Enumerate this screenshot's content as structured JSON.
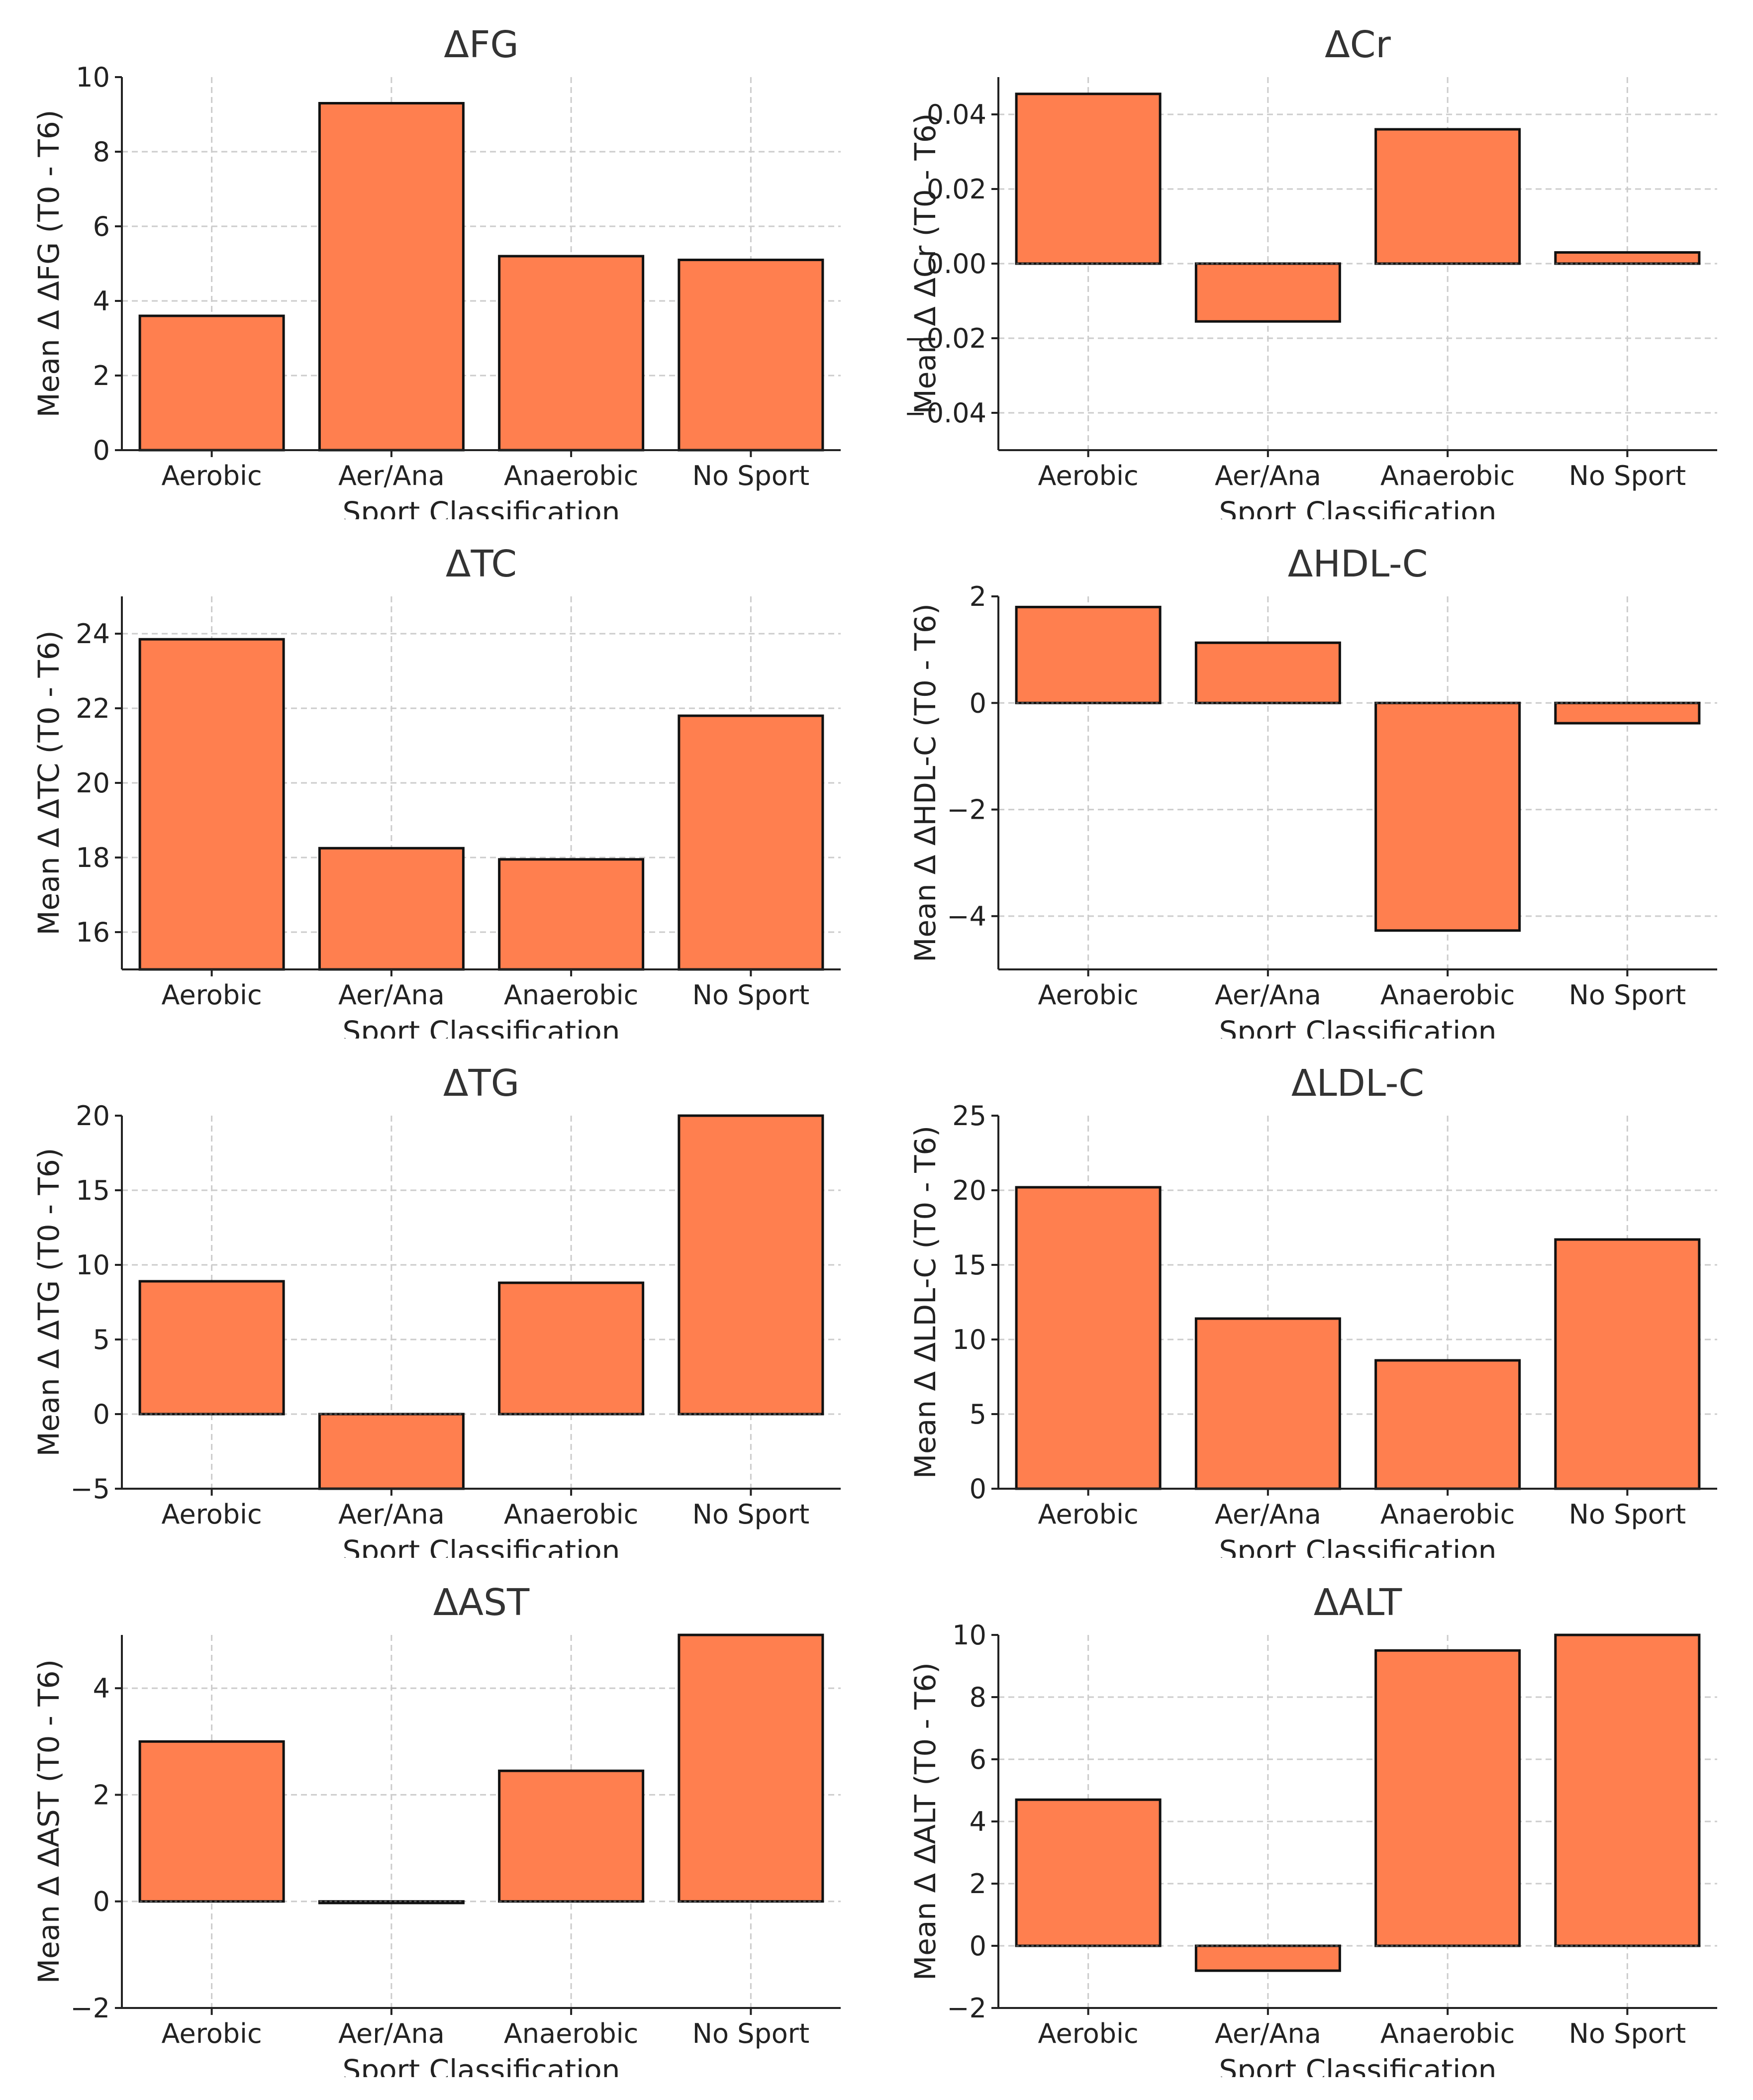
{
  "chart_data": [
    {
      "type": "bar",
      "title": "ΔFG",
      "xlabel": "Sport Classification",
      "ylabel": "Mean Δ ΔFG (T0 - T6)",
      "categories": [
        "Aerobic",
        "Aer/Ana",
        "Anaerobic",
        "No Sport"
      ],
      "values": [
        3.6,
        9.3,
        5.2,
        5.1
      ],
      "ylim": [
        0,
        10
      ],
      "yticks": [
        0,
        2,
        4,
        6,
        8,
        10
      ],
      "ytick_labels": [
        "0",
        "2",
        "4",
        "6",
        "8",
        "10"
      ],
      "grid": true,
      "bar_color": "#FF7F4F"
    },
    {
      "type": "bar",
      "title": "ΔCr",
      "xlabel": "Sport Classification",
      "ylabel": "Mean Δ ΔCr (T0 - T6)",
      "categories": [
        "Aerobic",
        "Aer/Ana",
        "Anaerobic",
        "No Sport"
      ],
      "values": [
        0.0455,
        -0.0155,
        0.036,
        0.003
      ],
      "ylim": [
        -0.05,
        0.05
      ],
      "yticks": [
        -0.04,
        -0.02,
        0.0,
        0.02,
        0.04
      ],
      "ytick_labels": [
        "−0.04",
        "−0.02",
        "0.00",
        "0.02",
        "0.04"
      ],
      "grid": true,
      "bar_color": "#FF7F4F"
    },
    {
      "type": "bar",
      "title": "ΔTC",
      "xlabel": "Sport Classification",
      "ylabel": "Mean Δ ΔTC (T0 - T6)",
      "categories": [
        "Aerobic",
        "Aer/Ana",
        "Anaerobic",
        "No Sport"
      ],
      "values": [
        23.85,
        18.25,
        17.95,
        21.8
      ],
      "ylim": [
        15,
        25
      ],
      "yticks": [
        16,
        18,
        20,
        22,
        24
      ],
      "ytick_labels": [
        "16",
        "18",
        "20",
        "22",
        "24"
      ],
      "grid": true,
      "bar_color": "#FF7F4F"
    },
    {
      "type": "bar",
      "title": "ΔHDL-C",
      "xlabel": "Sport Classification",
      "ylabel": "Mean Δ ΔHDL-C (T0 - T6)",
      "categories": [
        "Aerobic",
        "Aer/Ana",
        "Anaerobic",
        "No Sport"
      ],
      "values": [
        1.8,
        1.13,
        -4.27,
        -0.38
      ],
      "ylim": [
        -5,
        2
      ],
      "yticks": [
        -4,
        -2,
        0,
        2
      ],
      "ytick_labels": [
        "−4",
        "−2",
        "0",
        "2"
      ],
      "grid": true,
      "bar_color": "#FF7F4F"
    },
    {
      "type": "bar",
      "title": "ΔTG",
      "xlabel": "Sport Classification",
      "ylabel": "Mean Δ ΔTG (T0 - T6)",
      "categories": [
        "Aerobic",
        "Aer/Ana",
        "Anaerobic",
        "No Sport"
      ],
      "values": [
        8.9,
        -5.0,
        8.8,
        20.0
      ],
      "ylim": [
        -5,
        20
      ],
      "yticks": [
        -5,
        0,
        5,
        10,
        15,
        20
      ],
      "ytick_labels": [
        "−5",
        "0",
        "5",
        "10",
        "15",
        "20"
      ],
      "grid": true,
      "bar_color": "#FF7F4F"
    },
    {
      "type": "bar",
      "title": "ΔLDL-C",
      "xlabel": "Sport Classification",
      "ylabel": "Mean Δ ΔLDL-C (T0 - T6)",
      "categories": [
        "Aerobic",
        "Aer/Ana",
        "Anaerobic",
        "No Sport"
      ],
      "values": [
        20.2,
        11.4,
        8.6,
        16.7
      ],
      "ylim": [
        0,
        25
      ],
      "yticks": [
        0,
        5,
        10,
        15,
        20,
        25
      ],
      "ytick_labels": [
        "0",
        "5",
        "10",
        "15",
        "20",
        "25"
      ],
      "grid": true,
      "bar_color": "#FF7F4F"
    },
    {
      "type": "bar",
      "title": "ΔAST",
      "xlabel": "Sport Classification",
      "ylabel": "Mean Δ ΔAST (T0 - T6)",
      "categories": [
        "Aerobic",
        "Aer/Ana",
        "Anaerobic",
        "No Sport"
      ],
      "values": [
        3.0,
        -0.03,
        2.45,
        5.0
      ],
      "ylim": [
        -2,
        5
      ],
      "yticks": [
        -2,
        0,
        2,
        4
      ],
      "ytick_labels": [
        "−2",
        "0",
        "2",
        "4"
      ],
      "grid": true,
      "bar_color": "#FF7F4F"
    },
    {
      "type": "bar",
      "title": "ΔALT",
      "xlabel": "Sport Classification",
      "ylabel": "Mean Δ ΔALT (T0 - T6)",
      "categories": [
        "Aerobic",
        "Aer/Ana",
        "Anaerobic",
        "No Sport"
      ],
      "values": [
        4.7,
        -0.8,
        9.5,
        10.0
      ],
      "ylim": [
        -2,
        10
      ],
      "yticks": [
        -2,
        0,
        2,
        4,
        6,
        8,
        10
      ],
      "ytick_labels": [
        "−2",
        "0",
        "2",
        "4",
        "6",
        "8",
        "10"
      ],
      "grid": true,
      "bar_color": "#FF7F4F"
    }
  ]
}
